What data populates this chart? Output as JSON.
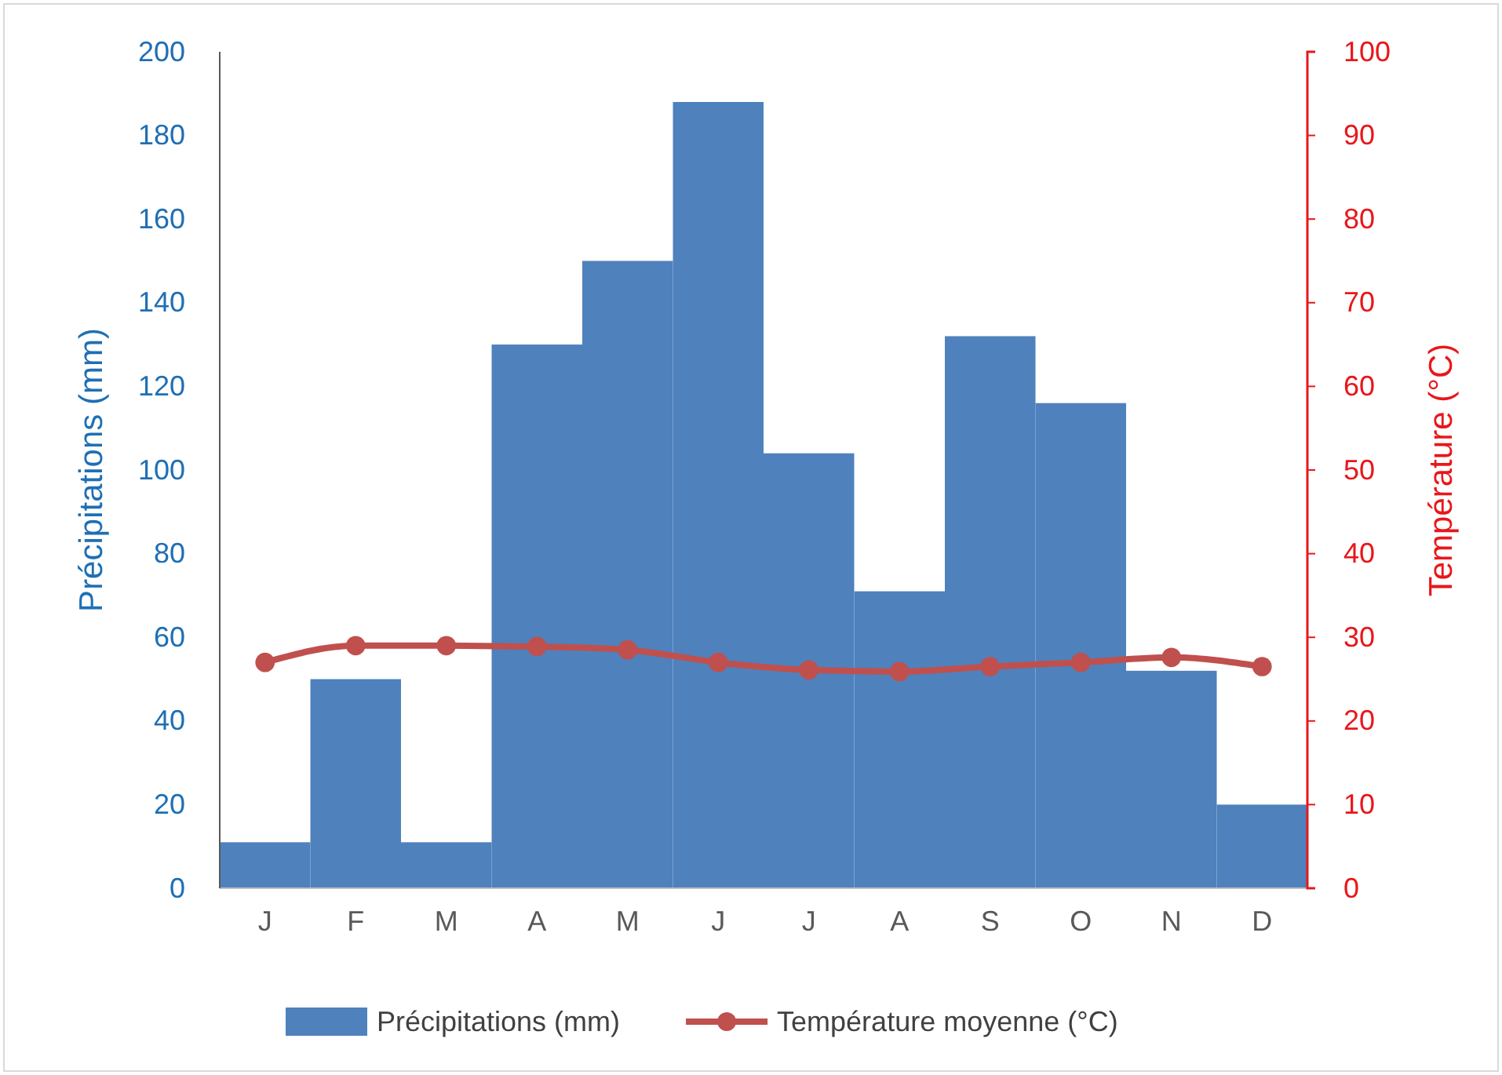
{
  "chart_data": {
    "type": "bar",
    "categories": [
      "J",
      "F",
      "M",
      "A",
      "M",
      "J",
      "J",
      "A",
      "S",
      "O",
      "N",
      "D"
    ],
    "series": [
      {
        "name": "Précipitations (mm)",
        "color": "#4f81bd",
        "values": [
          11,
          50,
          11,
          130,
          150,
          188,
          104,
          71,
          132,
          116,
          52,
          20
        ]
      },
      {
        "name": "Température moyenne (°C)",
        "type": "line",
        "axis": "y2",
        "color": "#c0504d",
        "marker": "circle",
        "values": [
          27,
          29,
          29,
          28.9,
          28.5,
          27,
          26.1,
          25.9,
          26.5,
          27,
          27.6,
          26.5
        ]
      }
    ],
    "ylabel": "Précipitations (mm)",
    "y2label": "Température (°C)",
    "ylim": [
      0,
      200
    ],
    "yticks": [
      0,
      20,
      40,
      60,
      80,
      100,
      120,
      140,
      160,
      180,
      200
    ],
    "y2lim": [
      0,
      100
    ],
    "y2ticks": [
      0,
      10,
      20,
      30,
      40,
      50,
      60,
      70,
      80,
      90,
      100
    ],
    "grid": false,
    "legend": "bottom"
  }
}
